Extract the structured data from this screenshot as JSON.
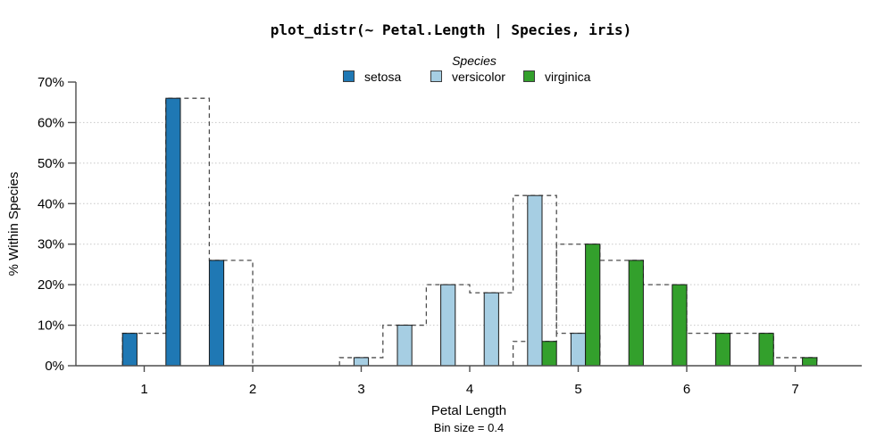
{
  "title": "plot_distr(~ Petal.Length | Species, iris)",
  "legend": {
    "title": "Species",
    "items": [
      {
        "label": "setosa",
        "color": "#1F78B4"
      },
      {
        "label": "versicolor",
        "color": "#A6CEE3"
      },
      {
        "label": "virginica",
        "color": "#33A02C"
      }
    ]
  },
  "colors": {
    "axis": "#4d4d4d",
    "grid": "#c8c8c8",
    "outline": "#4d4d4d",
    "bar_border": "#1a1a1a",
    "text": "#000000"
  },
  "chart_data": {
    "type": "bar",
    "title": "plot_distr(~ Petal.Length | Species, iris)",
    "xlabel": "Petal Length",
    "x_sublabel": "Bin size = 0.4",
    "ylabel": "% Within Species",
    "bin_size": 0.4,
    "x_ticks": [
      1,
      2,
      3,
      4,
      5,
      6,
      7
    ],
    "y_tick_values": [
      0,
      10,
      20,
      30,
      40,
      50,
      60,
      70
    ],
    "y_tick_labels": [
      "0%",
      "10%",
      "20%",
      "30%",
      "40%",
      "50%",
      "60%",
      "70%"
    ],
    "gridline_values": [
      10,
      20,
      30,
      40,
      50,
      60
    ],
    "xlim": [
      0.37,
      7.61
    ],
    "ylim": [
      0,
      70
    ],
    "grid": "dotted-horizontal",
    "legend_position": "top-center",
    "series": [
      {
        "name": "setosa",
        "color": "#1F78B4",
        "dodge_slot": 0,
        "bins": [
          {
            "start": 0.8,
            "end": 1.2,
            "pct": 8
          },
          {
            "start": 1.2,
            "end": 1.6,
            "pct": 66
          },
          {
            "start": 1.6,
            "end": 2.0,
            "pct": 26
          }
        ]
      },
      {
        "name": "versicolor",
        "color": "#A6CEE3",
        "dodge_slot": 1,
        "bins": [
          {
            "start": 2.8,
            "end": 3.2,
            "pct": 2
          },
          {
            "start": 3.2,
            "end": 3.6,
            "pct": 10
          },
          {
            "start": 3.6,
            "end": 4.0,
            "pct": 20
          },
          {
            "start": 4.0,
            "end": 4.4,
            "pct": 18
          },
          {
            "start": 4.4,
            "end": 4.8,
            "pct": 42
          },
          {
            "start": 4.8,
            "end": 5.2,
            "pct": 8
          }
        ]
      },
      {
        "name": "virginica",
        "color": "#33A02C",
        "dodge_slot": 2,
        "bins": [
          {
            "start": 4.4,
            "end": 4.8,
            "pct": 6
          },
          {
            "start": 4.8,
            "end": 5.2,
            "pct": 30
          },
          {
            "start": 5.2,
            "end": 5.6,
            "pct": 26
          },
          {
            "start": 5.6,
            "end": 6.0,
            "pct": 20
          },
          {
            "start": 6.0,
            "end": 6.4,
            "pct": 8
          },
          {
            "start": 6.4,
            "end": 6.8,
            "pct": 8
          },
          {
            "start": 6.8,
            "end": 7.2,
            "pct": 2
          }
        ]
      }
    ]
  }
}
